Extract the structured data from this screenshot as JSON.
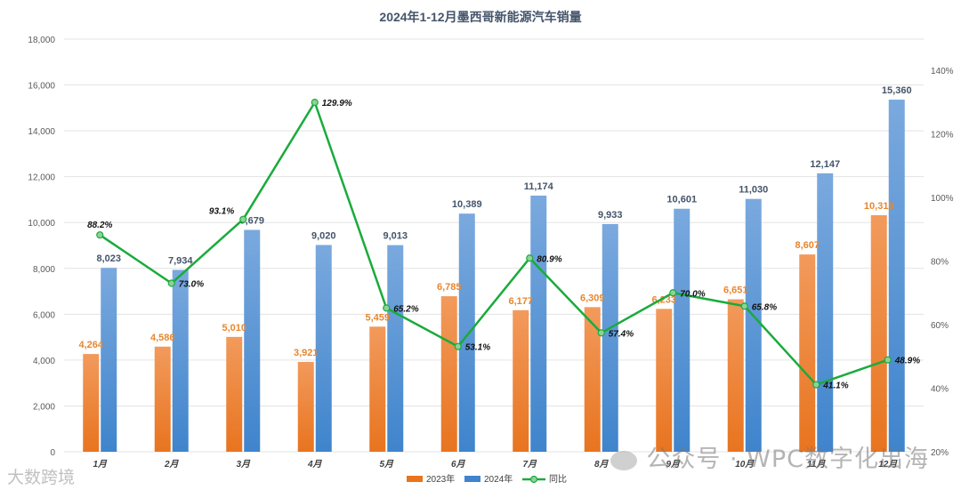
{
  "chart_data": {
    "type": "bar",
    "title": "2024年1-12月墨西哥新能源汽车销量",
    "categories": [
      "1月",
      "2月",
      "3月",
      "4月",
      "5月",
      "6月",
      "7月",
      "8月",
      "9月",
      "10月",
      "11月",
      "12月"
    ],
    "series": [
      {
        "name": "2023年",
        "type": "bar",
        "axis": "left",
        "values": [
          4264,
          4586,
          5010,
          3921,
          5459,
          6785,
          6177,
          6309,
          6233,
          6651,
          8607,
          10318
        ],
        "labels": [
          "4,264",
          "4,586",
          "5,010",
          "3,921",
          "5,459",
          "6,785",
          "6,177",
          "6,309",
          "6,233",
          "6,651",
          "8,607",
          "10,318"
        ]
      },
      {
        "name": "2024年",
        "type": "bar",
        "axis": "left",
        "values": [
          8023,
          7934,
          9679,
          9020,
          9013,
          10389,
          11174,
          9933,
          10601,
          11030,
          12147,
          15360
        ],
        "labels": [
          "8,023",
          "7,934",
          "9,679",
          "9,020",
          "9,013",
          "10,389",
          "11,174",
          "9,933",
          "10,601",
          "11,030",
          "12,147",
          "15,360"
        ]
      },
      {
        "name": "同比",
        "type": "line",
        "axis": "right",
        "values": [
          88.2,
          73.0,
          93.1,
          129.9,
          65.2,
          53.1,
          80.9,
          57.4,
          70.0,
          65.8,
          41.1,
          48.9
        ],
        "labels": [
          "88.2%",
          "73.0%",
          "93.1%",
          "129.9%",
          "65.2%",
          "53.1%",
          "80.9%",
          "57.4%",
          "70.0%",
          "65.8%",
          "41.1%",
          "48.9%"
        ]
      }
    ],
    "left_axis": {
      "min": 0,
      "max": 18000,
      "step": 2000,
      "ticks": [
        "0",
        "2,000",
        "4,000",
        "6,000",
        "8,000",
        "10,000",
        "12,000",
        "14,000",
        "16,000",
        "18,000"
      ]
    },
    "right_axis": {
      "min": 20,
      "max": 140,
      "step": 20,
      "ticks": [
        "20%",
        "40%",
        "60%",
        "80%",
        "100%",
        "120%",
        "140%"
      ]
    },
    "grid": true,
    "legend": "bottom"
  },
  "colors": {
    "bar_2023_top": "#f29a5c",
    "bar_2023_bottom": "#e8741f",
    "bar_2024_top": "#7aa9de",
    "bar_2024_bottom": "#3f84cc",
    "line": "#1aab3c",
    "marker_fill": "#8fd19a",
    "label_2023": "#e8862e",
    "label_2024": "#44546a",
    "title": "#44546a"
  },
  "watermarks": {
    "right": "公众号 · WPC数字化出海",
    "left": "大数跨境"
  }
}
